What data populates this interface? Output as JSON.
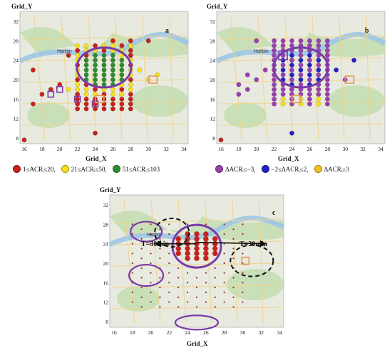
{
  "axis": {
    "ylabel": "Grid_Y",
    "xlabel": "Grid_X",
    "xticks": [
      "16",
      "18",
      "20",
      "22",
      "24",
      "26",
      "28",
      "30",
      "32",
      "34"
    ],
    "yticks": [
      "8",
      "12",
      "16",
      "20",
      "24",
      "28",
      "32"
    ]
  },
  "panels": {
    "a": {
      "letter": "a",
      "map_label": "Harbin"
    },
    "b": {
      "letter": "b",
      "map_label": "Harbin"
    },
    "c": {
      "letter": "c",
      "map_label": "Harbin"
    }
  },
  "legend_a": [
    {
      "text": "1≤ACRᵢ≤20,",
      "color": "#c8221d",
      "icon": "red-dot"
    },
    {
      "text": "21≤ACRᵢ≤50,",
      "color": "#f5e11c",
      "icon": "yellow-dot"
    },
    {
      "text": "51≤ACRᵢ≤103",
      "color": "#2e8b2e",
      "icon": "green-dot"
    }
  ],
  "legend_b": [
    {
      "text": "ΔACRᵢ≤−3,",
      "color": "#9a3fb0",
      "icon": "purple-dot"
    },
    {
      "text": "−2≤ΔACRᵢ≤2,",
      "color": "#2323c8",
      "icon": "blue-dot"
    },
    {
      "text": "ΔACRᵢ≥3",
      "color": "#f0c419",
      "icon": "yellow-dot"
    }
  ],
  "annotations": {
    "t_left": "T=30min",
    "t_right": "T=30min"
  },
  "colors": {
    "map_bg": "#e8eadf",
    "green_area": "#bfdcae",
    "river": "#9ec6e6",
    "road": "#f0d48a",
    "ellipse": "#7a3aa8",
    "square": "#e39a55",
    "red": "#c8221d",
    "yellow": "#f5e11c",
    "green": "#2e8b2e",
    "purple": "#9a3fb0",
    "blue": "#2323c8"
  }
}
